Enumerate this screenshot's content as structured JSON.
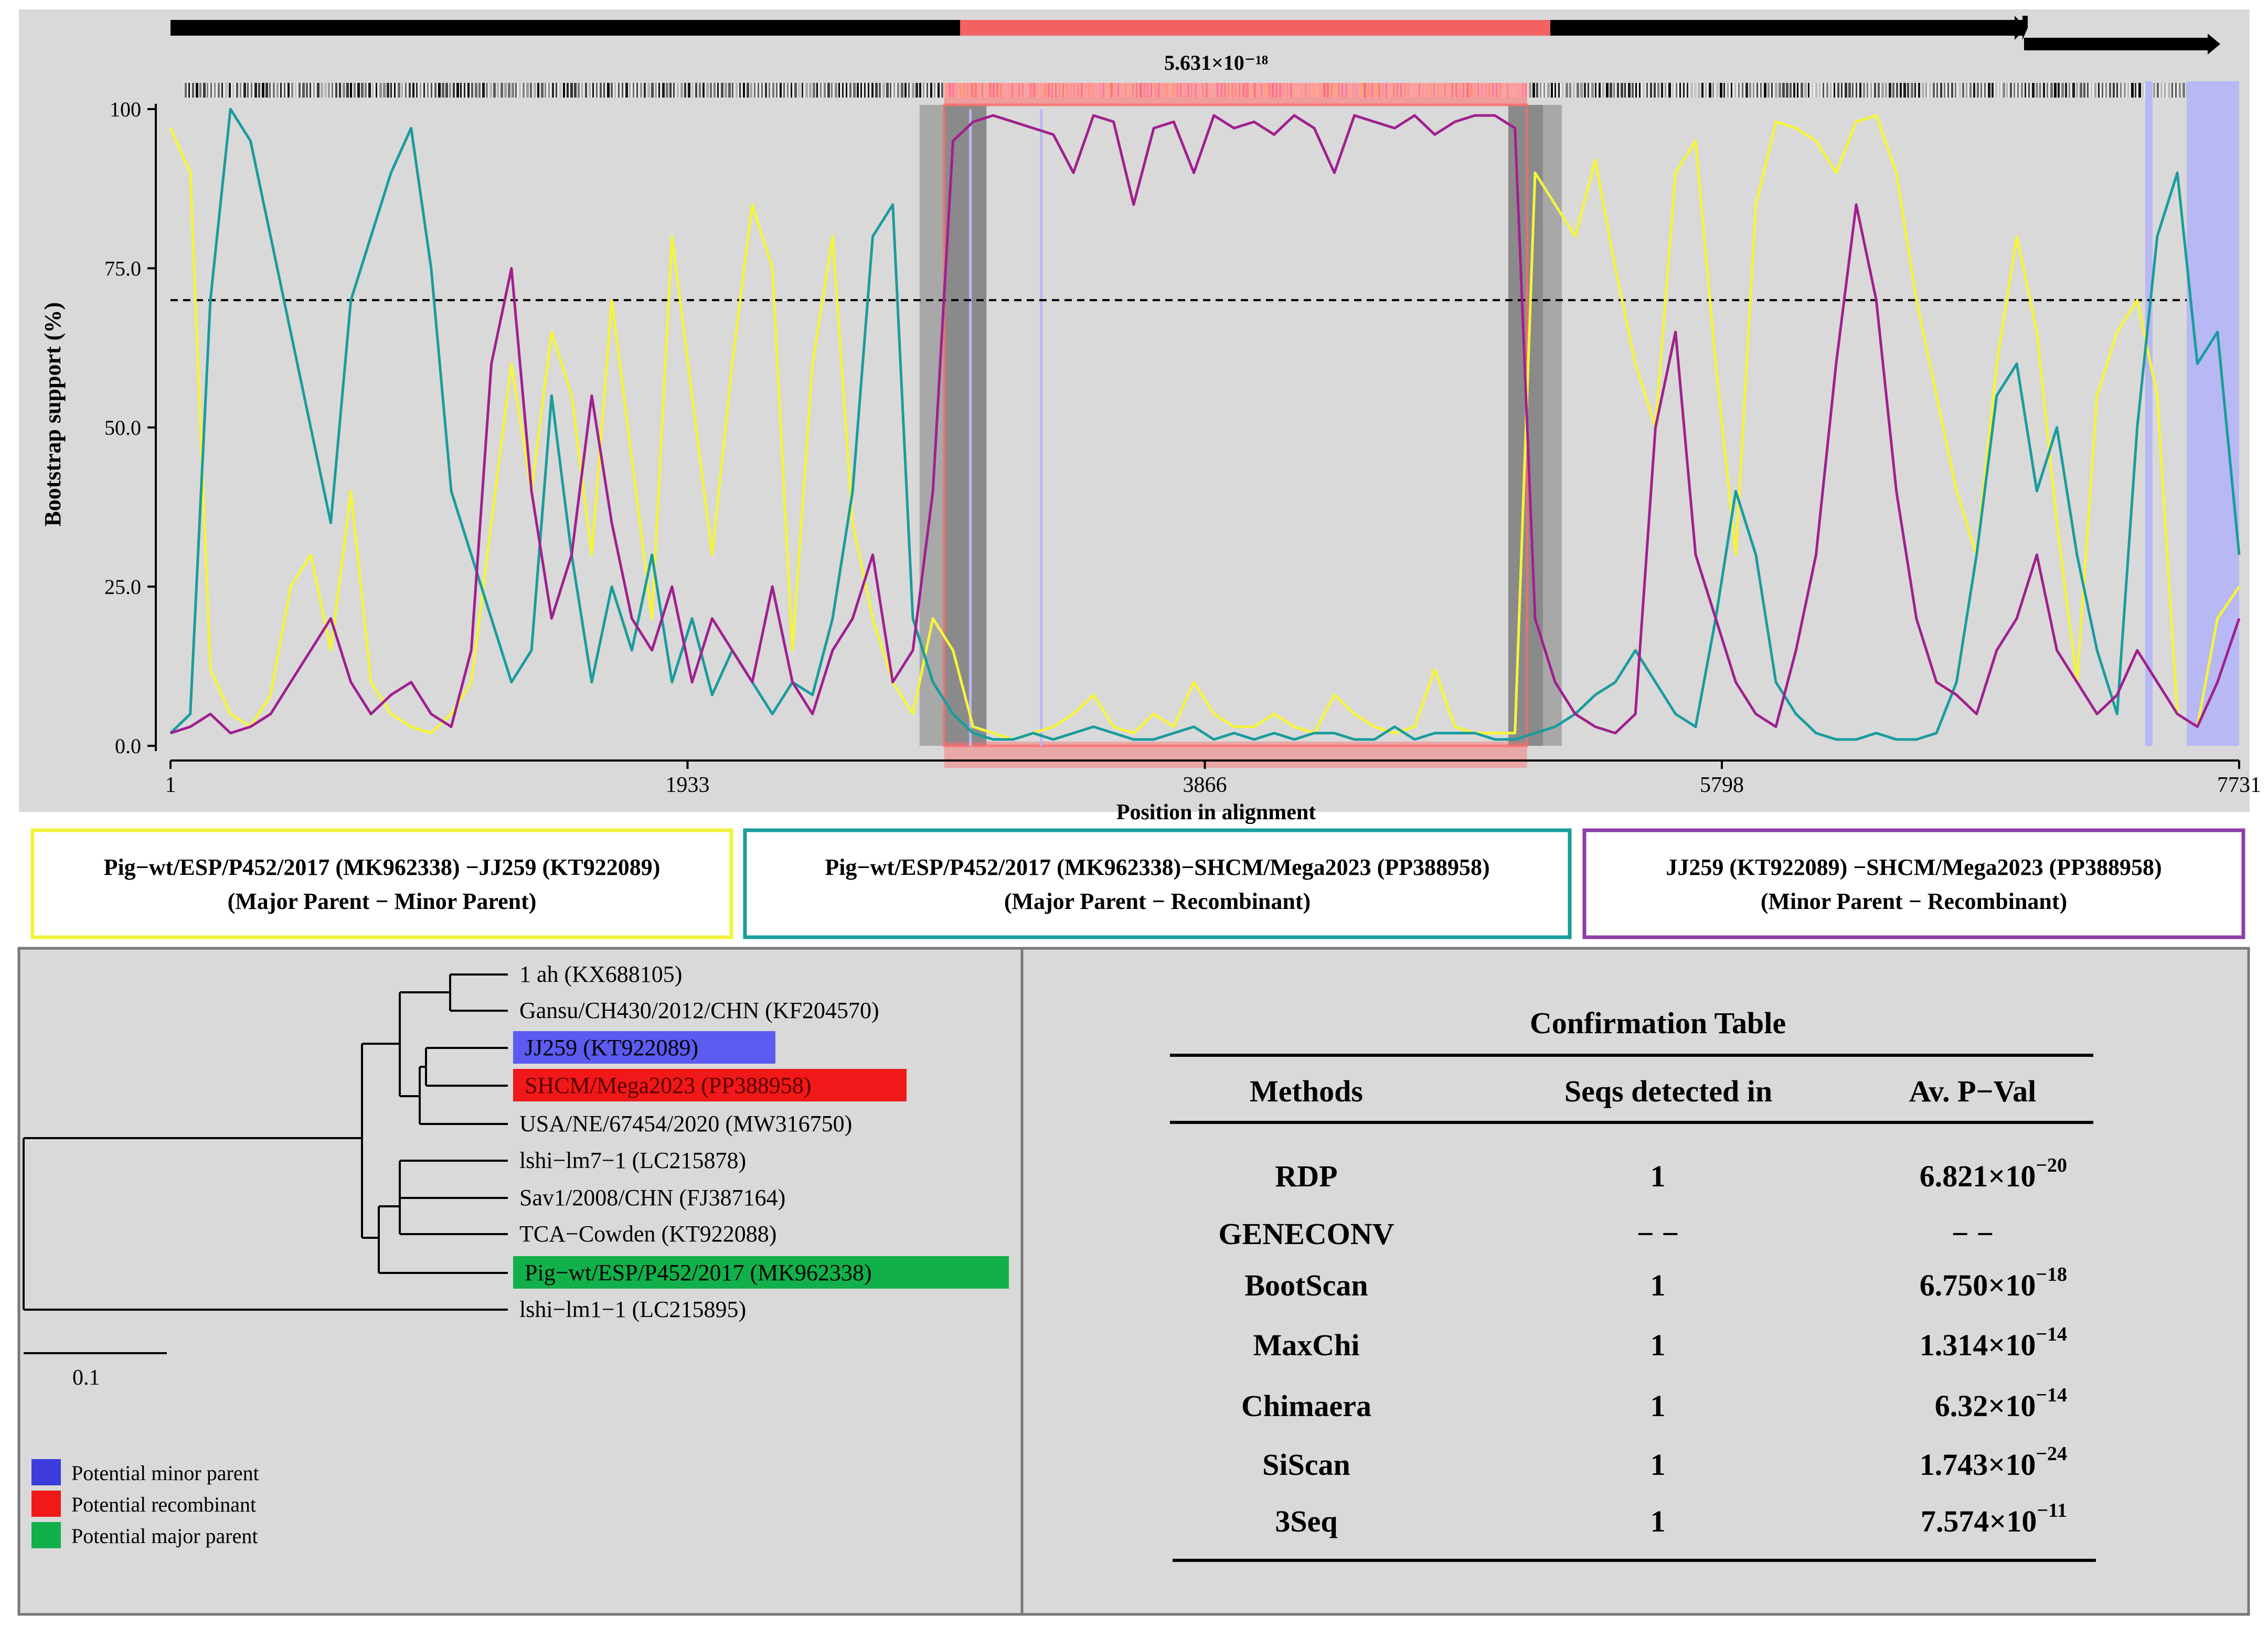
{
  "chart_data": {
    "type": "line",
    "xlabel": "Position in alignment",
    "ylabel": "Bootstrap support (%)",
    "xlim": [
      1,
      7731
    ],
    "ylim": [
      0,
      100
    ],
    "x_ticks": [
      "1",
      "1933",
      "3866",
      "5798",
      "7731"
    ],
    "y_ticks": [
      "0.0",
      "25.0",
      "50.0",
      "75.0",
      "100"
    ],
    "threshold": 70,
    "grid": false,
    "event_pvalue": "5.631×10⁻¹⁸",
    "recombinant_region": [
      2892,
      5070
    ],
    "colors": {
      "yellow": "#f5f53a",
      "teal": "#1a9c9c",
      "magenta": "#a0208e",
      "region": "#ff6a6a",
      "lilac": "#b8b8f4"
    },
    "x": [
      1,
      75,
      150,
      225,
      300,
      375,
      450,
      525,
      600,
      675,
      750,
      825,
      900,
      975,
      1050,
      1125,
      1200,
      1275,
      1350,
      1425,
      1500,
      1575,
      1650,
      1725,
      1800,
      1875,
      1950,
      2025,
      2100,
      2175,
      2250,
      2325,
      2400,
      2475,
      2550,
      2625,
      2700,
      2775,
      2850,
      2925,
      3000,
      3075,
      3150,
      3225,
      3300,
      3375,
      3450,
      3525,
      3600,
      3675,
      3750,
      3825,
      3900,
      3975,
      4050,
      4125,
      4200,
      4275,
      4350,
      4425,
      4500,
      4575,
      4650,
      4725,
      4800,
      4875,
      4950,
      5025,
      5100,
      5175,
      5250,
      5325,
      5400,
      5475,
      5550,
      5625,
      5700,
      5775,
      5850,
      5925,
      6000,
      6075,
      6150,
      6225,
      6300,
      6375,
      6450,
      6525,
      6600,
      6675,
      6750,
      6825,
      6900,
      6975,
      7050,
      7125,
      7200,
      7275,
      7350,
      7425,
      7500,
      7575,
      7650,
      7731
    ],
    "series": [
      {
        "name": "Pig-wt/ESP/P452/2017 (MK962338) −JJ259 (KT922089)",
        "color": "#f5f53a",
        "values": [
          97,
          90,
          12,
          5,
          3,
          8,
          25,
          30,
          15,
          40,
          10,
          5,
          3,
          2,
          5,
          10,
          35,
          60,
          40,
          65,
          55,
          30,
          70,
          45,
          20,
          80,
          55,
          30,
          60,
          85,
          75,
          15,
          60,
          80,
          35,
          20,
          10,
          5,
          20,
          15,
          3,
          2,
          1,
          2,
          3,
          5,
          8,
          3,
          2,
          5,
          3,
          10,
          5,
          3,
          3,
          5,
          3,
          2,
          8,
          5,
          3,
          2,
          3,
          12,
          3,
          2,
          2,
          2,
          90,
          85,
          80,
          92,
          75,
          60,
          50,
          90,
          95,
          60,
          30,
          85,
          98,
          97,
          95,
          90,
          98,
          99,
          90,
          70,
          55,
          40,
          30,
          60,
          80,
          65,
          35,
          10,
          55,
          65,
          70,
          55,
          5,
          3,
          20,
          25
        ]
      },
      {
        "name": "Pig-wt/ESP/P452/2017 (MK962338)−SHCM/Mega2023 (PP388958)",
        "color": "#1a9c9c",
        "values": [
          2,
          5,
          70,
          100,
          95,
          80,
          65,
          50,
          35,
          70,
          80,
          90,
          97,
          75,
          40,
          30,
          20,
          10,
          15,
          55,
          30,
          10,
          25,
          15,
          30,
          10,
          20,
          8,
          15,
          10,
          5,
          10,
          8,
          20,
          40,
          80,
          85,
          20,
          10,
          5,
          2,
          1,
          1,
          2,
          1,
          2,
          3,
          2,
          1,
          1,
          2,
          3,
          1,
          2,
          1,
          2,
          1,
          2,
          2,
          1,
          1,
          3,
          1,
          2,
          2,
          2,
          1,
          1,
          2,
          3,
          5,
          8,
          10,
          15,
          10,
          5,
          3,
          20,
          40,
          30,
          10,
          5,
          2,
          1,
          1,
          2,
          1,
          1,
          2,
          10,
          30,
          55,
          60,
          40,
          50,
          30,
          15,
          5,
          50,
          80,
          90,
          60,
          65,
          30
        ]
      },
      {
        "name": "JJ259 (KT922089) −SHCM/Mega2023 (PP388958)",
        "color": "#a0208e",
        "values": [
          2,
          3,
          5,
          2,
          3,
          5,
          10,
          15,
          20,
          10,
          5,
          8,
          10,
          5,
          3,
          15,
          60,
          75,
          40,
          20,
          30,
          55,
          35,
          20,
          15,
          25,
          10,
          20,
          15,
          10,
          25,
          10,
          5,
          15,
          20,
          30,
          10,
          15,
          40,
          95,
          98,
          99,
          98,
          97,
          96,
          90,
          99,
          98,
          85,
          97,
          98,
          90,
          99,
          97,
          98,
          96,
          99,
          97,
          90,
          99,
          98,
          97,
          99,
          96,
          98,
          99,
          99,
          97,
          20,
          10,
          5,
          3,
          2,
          5,
          50,
          65,
          30,
          20,
          10,
          5,
          3,
          15,
          30,
          60,
          85,
          70,
          40,
          20,
          10,
          8,
          5,
          15,
          20,
          30,
          15,
          10,
          5,
          8,
          15,
          10,
          5,
          3,
          10,
          20
        ]
      }
    ]
  },
  "legend_boxes": [
    {
      "line1": "Pig−wt/ESP/P452/2017 (MK962338) −JJ259 (KT922089)",
      "line2": "(Major Parent −  Minor Parent)",
      "color": "#f2f23c"
    },
    {
      "line1": "Pig−wt/ESP/P452/2017 (MK962338)−SHCM/Mega2023 (PP388958)",
      "line2": "(Major Parent −  Recombinant)",
      "color": "#1a9c9c"
    },
    {
      "line1": "JJ259 (KT922089) −SHCM/Mega2023 (PP388958)",
      "line2": "(Minor Parent −  Recombinant)",
      "color": "#8a3fa8"
    }
  ],
  "tree": {
    "leaves": [
      {
        "label": "1 ah (KX688105)",
        "highlight": ""
      },
      {
        "label": "Gansu/CH430/2012/CHN (KF204570)",
        "highlight": ""
      },
      {
        "label": "JJ259 (KT922089)",
        "highlight": "#5b5bf0"
      },
      {
        "label": "SHCM/Mega2023 (PP388958)",
        "highlight": "#f01818"
      },
      {
        "label": "USA/NE/67454/2020 (MW316750)",
        "highlight": ""
      },
      {
        "label": "lshi−lm7−1 (LC215878)",
        "highlight": ""
      },
      {
        "label": "Sav1/2008/CHN (FJ387164)",
        "highlight": ""
      },
      {
        "label": "TCA−Cowden  (KT922088)",
        "highlight": ""
      },
      {
        "label": "Pig−wt/ESP/P452/2017 (MK962338)",
        "highlight": "#12b04a"
      },
      {
        "label": "lshi−lm1−1 (LC215895)",
        "highlight": ""
      }
    ],
    "scale_label": "0.1",
    "legend": [
      {
        "label": "Potential minor parent",
        "color": "#3c3cdc"
      },
      {
        "label": "Potential recombinant",
        "color": "#f01818"
      },
      {
        "label": "Potential major parent",
        "color": "#12b04a"
      }
    ]
  },
  "confirmation_table": {
    "title": "Confirmation Table",
    "headers": [
      "Methods",
      "Seqs detected in",
      "Av. P−Val"
    ],
    "rows": [
      {
        "method": "RDP",
        "seqs": "1",
        "mant": "6.821",
        "exp": "−20"
      },
      {
        "method": "GENECONV",
        "seqs": "− −",
        "mant": "− −",
        "exp": ""
      },
      {
        "method": "BootScan",
        "seqs": "1",
        "mant": "6.750",
        "exp": "−18"
      },
      {
        "method": "MaxChi",
        "seqs": "1",
        "mant": "1.314",
        "exp": "−14"
      },
      {
        "method": "Chimaera",
        "seqs": "1",
        "mant": "6.32",
        "exp": "−14"
      },
      {
        "method": "SiScan",
        "seqs": "1",
        "mant": "1.743",
        "exp": "−24"
      },
      {
        "method": "3Seq",
        "seqs": "1",
        "mant": "7.574",
        "exp": "−11"
      }
    ]
  }
}
